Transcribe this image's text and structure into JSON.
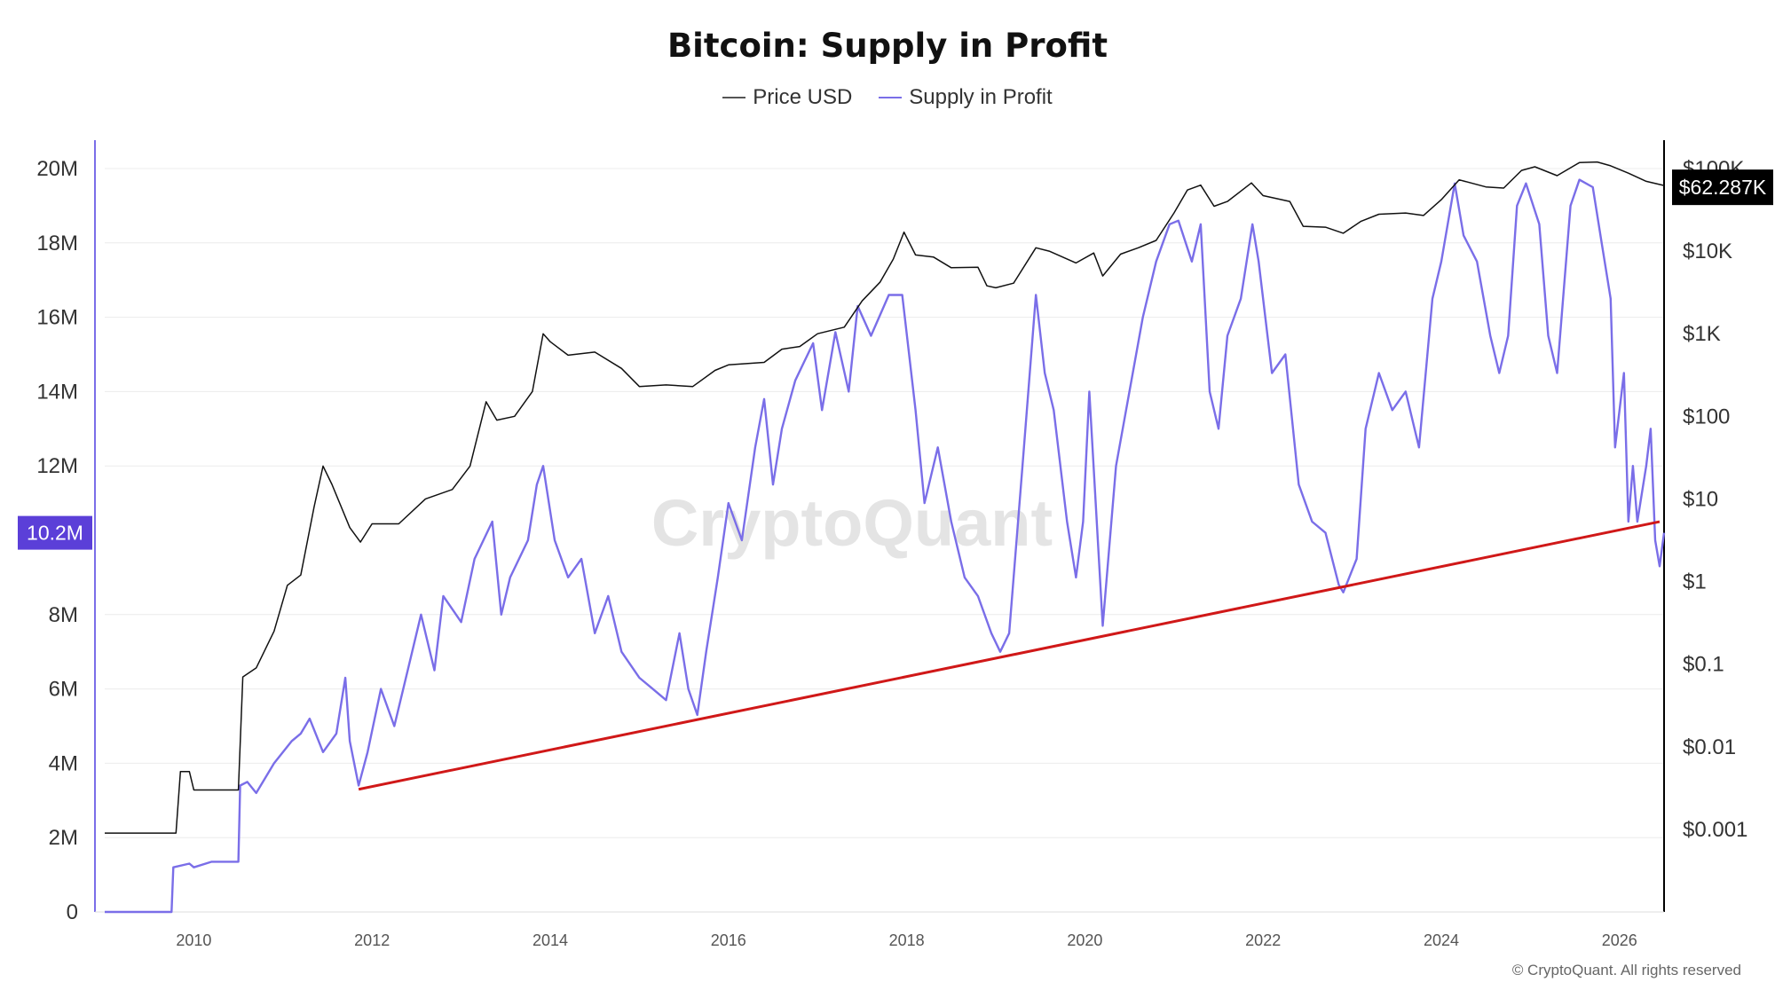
{
  "colors": {
    "price": "#111111",
    "supply": "#7a6ee8",
    "trend": "#d01818",
    "badge_left": "#5b3fd8",
    "badge_right": "#000000",
    "grid": "#ececec"
  },
  "chart_data": {
    "type": "line",
    "title": "Bitcoin: Supply in Profit",
    "legend_position": "top-center",
    "series": [
      {
        "name": "Price USD",
        "axis": "right",
        "scale": "log",
        "points": [
          [
            2009.0,
            0.0009
          ],
          [
            2009.8,
            0.0009
          ],
          [
            2009.85,
            0.005
          ],
          [
            2009.95,
            0.005
          ],
          [
            2010.0,
            0.003
          ],
          [
            2010.5,
            0.003
          ],
          [
            2010.55,
            0.07
          ],
          [
            2010.7,
            0.09
          ],
          [
            2010.9,
            0.25
          ],
          [
            2011.05,
            0.9
          ],
          [
            2011.2,
            1.2
          ],
          [
            2011.35,
            8
          ],
          [
            2011.45,
            25
          ],
          [
            2011.55,
            15
          ],
          [
            2011.75,
            4.5
          ],
          [
            2011.87,
            3
          ],
          [
            2012.0,
            5
          ],
          [
            2012.3,
            5
          ],
          [
            2012.6,
            10
          ],
          [
            2012.9,
            13
          ],
          [
            2013.1,
            25
          ],
          [
            2013.28,
            150
          ],
          [
            2013.4,
            90
          ],
          [
            2013.6,
            100
          ],
          [
            2013.8,
            200
          ],
          [
            2013.92,
            1000
          ],
          [
            2014.0,
            800
          ],
          [
            2014.2,
            550
          ],
          [
            2014.5,
            600
          ],
          [
            2014.8,
            380
          ],
          [
            2015.0,
            230
          ],
          [
            2015.3,
            240
          ],
          [
            2015.6,
            230
          ],
          [
            2015.85,
            360
          ],
          [
            2016.0,
            420
          ],
          [
            2016.4,
            450
          ],
          [
            2016.6,
            650
          ],
          [
            2016.8,
            700
          ],
          [
            2017.0,
            1000
          ],
          [
            2017.3,
            1200
          ],
          [
            2017.5,
            2500
          ],
          [
            2017.7,
            4200
          ],
          [
            2017.85,
            8000
          ],
          [
            2017.97,
            17000
          ],
          [
            2018.1,
            9000
          ],
          [
            2018.3,
            8500
          ],
          [
            2018.5,
            6300
          ],
          [
            2018.8,
            6400
          ],
          [
            2018.9,
            3800
          ],
          [
            2019.0,
            3600
          ],
          [
            2019.2,
            4100
          ],
          [
            2019.45,
            11000
          ],
          [
            2019.6,
            10000
          ],
          [
            2019.9,
            7200
          ],
          [
            2020.1,
            9500
          ],
          [
            2020.2,
            5000
          ],
          [
            2020.4,
            9200
          ],
          [
            2020.6,
            11000
          ],
          [
            2020.8,
            13500
          ],
          [
            2021.0,
            29000
          ],
          [
            2021.15,
            55000
          ],
          [
            2021.3,
            63000
          ],
          [
            2021.45,
            35000
          ],
          [
            2021.6,
            40000
          ],
          [
            2021.87,
            67000
          ],
          [
            2022.0,
            47000
          ],
          [
            2022.3,
            40000
          ],
          [
            2022.45,
            20000
          ],
          [
            2022.7,
            19500
          ],
          [
            2022.9,
            16500
          ],
          [
            2023.1,
            23000
          ],
          [
            2023.3,
            28000
          ],
          [
            2023.6,
            29000
          ],
          [
            2023.8,
            27000
          ],
          [
            2024.0,
            42000
          ],
          [
            2024.2,
            73000
          ],
          [
            2024.5,
            60000
          ],
          [
            2024.7,
            58000
          ],
          [
            2024.9,
            95000
          ],
          [
            2025.05,
            105000
          ],
          [
            2025.3,
            82000
          ],
          [
            2025.55,
            118000
          ],
          [
            2025.75,
            120000
          ],
          [
            2025.9,
            108000
          ],
          [
            2026.1,
            88000
          ],
          [
            2026.3,
            70000
          ],
          [
            2026.5,
            62287
          ]
        ]
      },
      {
        "name": "Supply in Profit",
        "axis": "left",
        "points": [
          [
            2009.0,
            0
          ],
          [
            2009.75,
            0
          ],
          [
            2009.77,
            1.2
          ],
          [
            2009.95,
            1.3
          ],
          [
            2010.0,
            1.2
          ],
          [
            2010.2,
            1.35
          ],
          [
            2010.5,
            1.35
          ],
          [
            2010.52,
            3.4
          ],
          [
            2010.6,
            3.5
          ],
          [
            2010.7,
            3.2
          ],
          [
            2010.9,
            4.0
          ],
          [
            2011.1,
            4.6
          ],
          [
            2011.2,
            4.8
          ],
          [
            2011.3,
            5.2
          ],
          [
            2011.45,
            4.3
          ],
          [
            2011.6,
            4.8
          ],
          [
            2011.7,
            6.3
          ],
          [
            2011.75,
            4.6
          ],
          [
            2011.85,
            3.4
          ],
          [
            2011.95,
            4.3
          ],
          [
            2012.1,
            6.0
          ],
          [
            2012.25,
            5.0
          ],
          [
            2012.4,
            6.5
          ],
          [
            2012.55,
            8.0
          ],
          [
            2012.7,
            6.5
          ],
          [
            2012.8,
            8.5
          ],
          [
            2013.0,
            7.8
          ],
          [
            2013.15,
            9.5
          ],
          [
            2013.35,
            10.5
          ],
          [
            2013.45,
            8.0
          ],
          [
            2013.55,
            9.0
          ],
          [
            2013.75,
            10.0
          ],
          [
            2013.85,
            11.5
          ],
          [
            2013.92,
            12.0
          ],
          [
            2014.05,
            10.0
          ],
          [
            2014.2,
            9.0
          ],
          [
            2014.35,
            9.5
          ],
          [
            2014.5,
            7.5
          ],
          [
            2014.65,
            8.5
          ],
          [
            2014.8,
            7.0
          ],
          [
            2015.0,
            6.3
          ],
          [
            2015.15,
            6.0
          ],
          [
            2015.3,
            5.7
          ],
          [
            2015.45,
            7.5
          ],
          [
            2015.55,
            6.0
          ],
          [
            2015.65,
            5.3
          ],
          [
            2015.75,
            7.0
          ],
          [
            2015.88,
            9.0
          ],
          [
            2016.0,
            11.0
          ],
          [
            2016.15,
            10.0
          ],
          [
            2016.3,
            12.5
          ],
          [
            2016.4,
            13.8
          ],
          [
            2016.5,
            11.5
          ],
          [
            2016.6,
            13.0
          ],
          [
            2016.75,
            14.3
          ],
          [
            2016.85,
            14.8
          ],
          [
            2016.95,
            15.3
          ],
          [
            2017.05,
            13.5
          ],
          [
            2017.2,
            15.6
          ],
          [
            2017.35,
            14.0
          ],
          [
            2017.45,
            16.3
          ],
          [
            2017.6,
            15.5
          ],
          [
            2017.8,
            16.6
          ],
          [
            2017.95,
            16.6
          ],
          [
            2018.1,
            13.5
          ],
          [
            2018.2,
            11.0
          ],
          [
            2018.35,
            12.5
          ],
          [
            2018.5,
            10.5
          ],
          [
            2018.65,
            9.0
          ],
          [
            2018.8,
            8.5
          ],
          [
            2018.95,
            7.5
          ],
          [
            2019.05,
            7.0
          ],
          [
            2019.15,
            7.5
          ],
          [
            2019.3,
            12.0
          ],
          [
            2019.45,
            16.6
          ],
          [
            2019.55,
            14.5
          ],
          [
            2019.65,
            13.5
          ],
          [
            2019.8,
            10.5
          ],
          [
            2019.9,
            9.0
          ],
          [
            2019.98,
            10.5
          ],
          [
            2020.05,
            14.0
          ],
          [
            2020.2,
            7.7
          ],
          [
            2020.35,
            12.0
          ],
          [
            2020.5,
            14.0
          ],
          [
            2020.65,
            16.0
          ],
          [
            2020.8,
            17.5
          ],
          [
            2020.95,
            18.5
          ],
          [
            2021.05,
            18.6
          ],
          [
            2021.2,
            17.5
          ],
          [
            2021.3,
            18.5
          ],
          [
            2021.4,
            14.0
          ],
          [
            2021.5,
            13.0
          ],
          [
            2021.6,
            15.5
          ],
          [
            2021.75,
            16.5
          ],
          [
            2021.88,
            18.5
          ],
          [
            2021.95,
            17.5
          ],
          [
            2022.1,
            14.5
          ],
          [
            2022.25,
            15.0
          ],
          [
            2022.4,
            11.5
          ],
          [
            2022.55,
            10.5
          ],
          [
            2022.7,
            10.2
          ],
          [
            2022.85,
            8.8
          ],
          [
            2022.9,
            8.6
          ],
          [
            2023.05,
            9.5
          ],
          [
            2023.15,
            13.0
          ],
          [
            2023.3,
            14.5
          ],
          [
            2023.45,
            13.5
          ],
          [
            2023.6,
            14.0
          ],
          [
            2023.75,
            12.5
          ],
          [
            2023.9,
            16.5
          ],
          [
            2024.0,
            17.5
          ],
          [
            2024.15,
            19.6
          ],
          [
            2024.25,
            18.2
          ],
          [
            2024.4,
            17.5
          ],
          [
            2024.55,
            15.5
          ],
          [
            2024.65,
            14.5
          ],
          [
            2024.75,
            15.5
          ],
          [
            2024.85,
            19.0
          ],
          [
            2024.95,
            19.6
          ],
          [
            2025.1,
            18.5
          ],
          [
            2025.2,
            15.5
          ],
          [
            2025.3,
            14.5
          ],
          [
            2025.45,
            19.0
          ],
          [
            2025.55,
            19.7
          ],
          [
            2025.7,
            19.5
          ],
          [
            2025.8,
            18.0
          ],
          [
            2025.9,
            16.5
          ],
          [
            2025.95,
            12.5
          ],
          [
            2026.05,
            14.5
          ],
          [
            2026.1,
            10.5
          ],
          [
            2026.15,
            12.0
          ],
          [
            2026.2,
            10.5
          ],
          [
            2026.3,
            12.0
          ],
          [
            2026.35,
            13.0
          ],
          [
            2026.4,
            10.0
          ],
          [
            2026.45,
            9.3
          ],
          [
            2026.5,
            10.2
          ]
        ]
      },
      {
        "name": "Trend",
        "axis": "left",
        "points": [
          [
            2011.85,
            3.3
          ],
          [
            2026.45,
            10.5
          ]
        ]
      }
    ],
    "x_axis": {
      "range": [
        2009.0,
        2026.5
      ],
      "ticks": [
        "2010",
        "2012",
        "2014",
        "2016",
        "2018",
        "2020",
        "2022",
        "2024",
        "2026"
      ],
      "tick_values": [
        2010,
        2012,
        2014,
        2016,
        2018,
        2020,
        2022,
        2024,
        2026
      ]
    },
    "y_left": {
      "range": [
        0,
        20
      ],
      "unit_suffix": "M",
      "ticks": [
        "0",
        "2M",
        "4M",
        "6M",
        "8M",
        "10.2M",
        "12M",
        "14M",
        "16M",
        "18M",
        "20M"
      ],
      "tick_values": [
        0,
        2,
        4,
        6,
        8,
        10.2,
        12,
        14,
        16,
        18,
        20
      ]
    },
    "y_right": {
      "scale": "log",
      "range": [
        0.0001,
        100000
      ],
      "ticks": [
        "$0.001",
        "$0.01",
        "$0.1",
        "$1",
        "$10",
        "$100",
        "$1K",
        "$10K",
        "$100K"
      ],
      "tick_values": [
        0.001,
        0.01,
        0.1,
        1,
        10,
        100,
        1000,
        10000,
        100000
      ]
    },
    "badges": {
      "left": "10.2M",
      "right": "$62.287K"
    },
    "grid": true
  },
  "footer": {
    "copyright": "© CryptoQuant. All rights reserved",
    "watermark": "CryptoQuant"
  }
}
